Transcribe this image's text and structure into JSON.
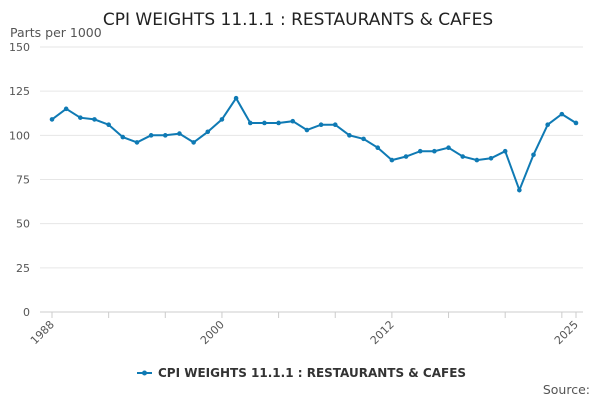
{
  "chart_data": {
    "type": "line",
    "title": "CPI WEIGHTS 11.1.1 : RESTAURANTS & CAFES",
    "ylabel": "Parts per 1000",
    "xlabel": "",
    "ylim": [
      0,
      150
    ],
    "xlim": [
      1988,
      2025
    ],
    "yticks": [
      0,
      25,
      50,
      75,
      100,
      125,
      150
    ],
    "xticks": [
      1988,
      2000,
      2012,
      2025
    ],
    "grid": true,
    "legend": "bottom-center",
    "color": "#0f7ab4",
    "series": [
      {
        "name": "CPI WEIGHTS 11.1.1 : RESTAURANTS & CAFES",
        "x": [
          1988,
          1989,
          1990,
          1991,
          1992,
          1993,
          1994,
          1995,
          1996,
          1997,
          1998,
          1999,
          2000,
          2001,
          2002,
          2003,
          2004,
          2005,
          2006,
          2007,
          2008,
          2009,
          2010,
          2011,
          2012,
          2013,
          2014,
          2015,
          2016,
          2017,
          2018,
          2019,
          2020,
          2021,
          2022,
          2023,
          2024,
          2025
        ],
        "values": [
          109,
          115,
          110,
          109,
          106,
          99,
          96,
          100,
          100,
          101,
          96,
          102,
          109,
          121,
          107,
          107,
          107,
          108,
          103,
          106,
          106,
          100,
          98,
          93,
          86,
          88,
          91,
          91,
          93,
          88,
          86,
          87,
          91,
          69,
          89,
          106,
          112,
          107
        ]
      }
    ]
  },
  "source_label": "Source:"
}
